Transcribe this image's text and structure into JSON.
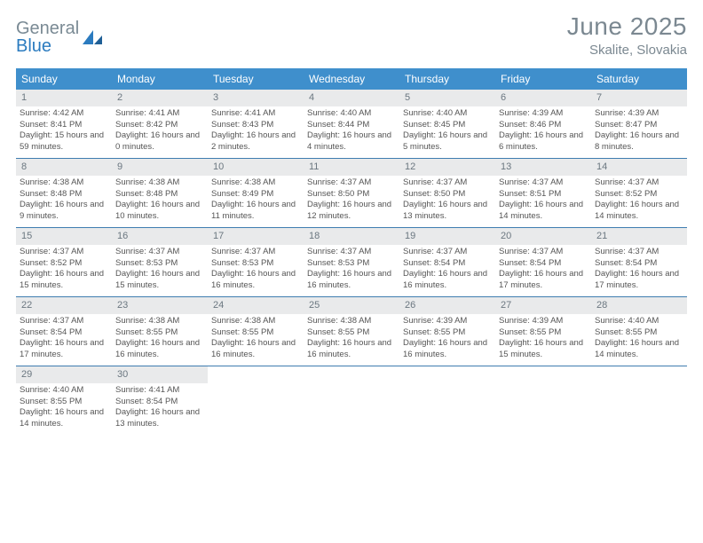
{
  "logo": {
    "word1": "General",
    "word2": "Blue"
  },
  "title": "June 2025",
  "location": "Skalite, Slovakia",
  "colors": {
    "header_bg": "#3f8fcc",
    "header_fg": "#ffffff",
    "border": "#3f7db0",
    "num_bg": "#e9eaeb",
    "text": "#555555",
    "title_color": "#7b8891"
  },
  "dayNames": [
    "Sunday",
    "Monday",
    "Tuesday",
    "Wednesday",
    "Thursday",
    "Friday",
    "Saturday"
  ],
  "weeks": [
    [
      {
        "n": "1",
        "sr": "4:42 AM",
        "ss": "8:41 PM",
        "dl": "15 hours and 59 minutes."
      },
      {
        "n": "2",
        "sr": "4:41 AM",
        "ss": "8:42 PM",
        "dl": "16 hours and 0 minutes."
      },
      {
        "n": "3",
        "sr": "4:41 AM",
        "ss": "8:43 PM",
        "dl": "16 hours and 2 minutes."
      },
      {
        "n": "4",
        "sr": "4:40 AM",
        "ss": "8:44 PM",
        "dl": "16 hours and 4 minutes."
      },
      {
        "n": "5",
        "sr": "4:40 AM",
        "ss": "8:45 PM",
        "dl": "16 hours and 5 minutes."
      },
      {
        "n": "6",
        "sr": "4:39 AM",
        "ss": "8:46 PM",
        "dl": "16 hours and 6 minutes."
      },
      {
        "n": "7",
        "sr": "4:39 AM",
        "ss": "8:47 PM",
        "dl": "16 hours and 8 minutes."
      }
    ],
    [
      {
        "n": "8",
        "sr": "4:38 AM",
        "ss": "8:48 PM",
        "dl": "16 hours and 9 minutes."
      },
      {
        "n": "9",
        "sr": "4:38 AM",
        "ss": "8:48 PM",
        "dl": "16 hours and 10 minutes."
      },
      {
        "n": "10",
        "sr": "4:38 AM",
        "ss": "8:49 PM",
        "dl": "16 hours and 11 minutes."
      },
      {
        "n": "11",
        "sr": "4:37 AM",
        "ss": "8:50 PM",
        "dl": "16 hours and 12 minutes."
      },
      {
        "n": "12",
        "sr": "4:37 AM",
        "ss": "8:50 PM",
        "dl": "16 hours and 13 minutes."
      },
      {
        "n": "13",
        "sr": "4:37 AM",
        "ss": "8:51 PM",
        "dl": "16 hours and 14 minutes."
      },
      {
        "n": "14",
        "sr": "4:37 AM",
        "ss": "8:52 PM",
        "dl": "16 hours and 14 minutes."
      }
    ],
    [
      {
        "n": "15",
        "sr": "4:37 AM",
        "ss": "8:52 PM",
        "dl": "16 hours and 15 minutes."
      },
      {
        "n": "16",
        "sr": "4:37 AM",
        "ss": "8:53 PM",
        "dl": "16 hours and 15 minutes."
      },
      {
        "n": "17",
        "sr": "4:37 AM",
        "ss": "8:53 PM",
        "dl": "16 hours and 16 minutes."
      },
      {
        "n": "18",
        "sr": "4:37 AM",
        "ss": "8:53 PM",
        "dl": "16 hours and 16 minutes."
      },
      {
        "n": "19",
        "sr": "4:37 AM",
        "ss": "8:54 PM",
        "dl": "16 hours and 16 minutes."
      },
      {
        "n": "20",
        "sr": "4:37 AM",
        "ss": "8:54 PM",
        "dl": "16 hours and 17 minutes."
      },
      {
        "n": "21",
        "sr": "4:37 AM",
        "ss": "8:54 PM",
        "dl": "16 hours and 17 minutes."
      }
    ],
    [
      {
        "n": "22",
        "sr": "4:37 AM",
        "ss": "8:54 PM",
        "dl": "16 hours and 17 minutes."
      },
      {
        "n": "23",
        "sr": "4:38 AM",
        "ss": "8:55 PM",
        "dl": "16 hours and 16 minutes."
      },
      {
        "n": "24",
        "sr": "4:38 AM",
        "ss": "8:55 PM",
        "dl": "16 hours and 16 minutes."
      },
      {
        "n": "25",
        "sr": "4:38 AM",
        "ss": "8:55 PM",
        "dl": "16 hours and 16 minutes."
      },
      {
        "n": "26",
        "sr": "4:39 AM",
        "ss": "8:55 PM",
        "dl": "16 hours and 16 minutes."
      },
      {
        "n": "27",
        "sr": "4:39 AM",
        "ss": "8:55 PM",
        "dl": "16 hours and 15 minutes."
      },
      {
        "n": "28",
        "sr": "4:40 AM",
        "ss": "8:55 PM",
        "dl": "16 hours and 14 minutes."
      }
    ],
    [
      {
        "n": "29",
        "sr": "4:40 AM",
        "ss": "8:55 PM",
        "dl": "16 hours and 14 minutes."
      },
      {
        "n": "30",
        "sr": "4:41 AM",
        "ss": "8:54 PM",
        "dl": "16 hours and 13 minutes."
      },
      null,
      null,
      null,
      null,
      null
    ]
  ],
  "labels": {
    "sunrise": "Sunrise: ",
    "sunset": "Sunset: ",
    "daylight": "Daylight: "
  }
}
